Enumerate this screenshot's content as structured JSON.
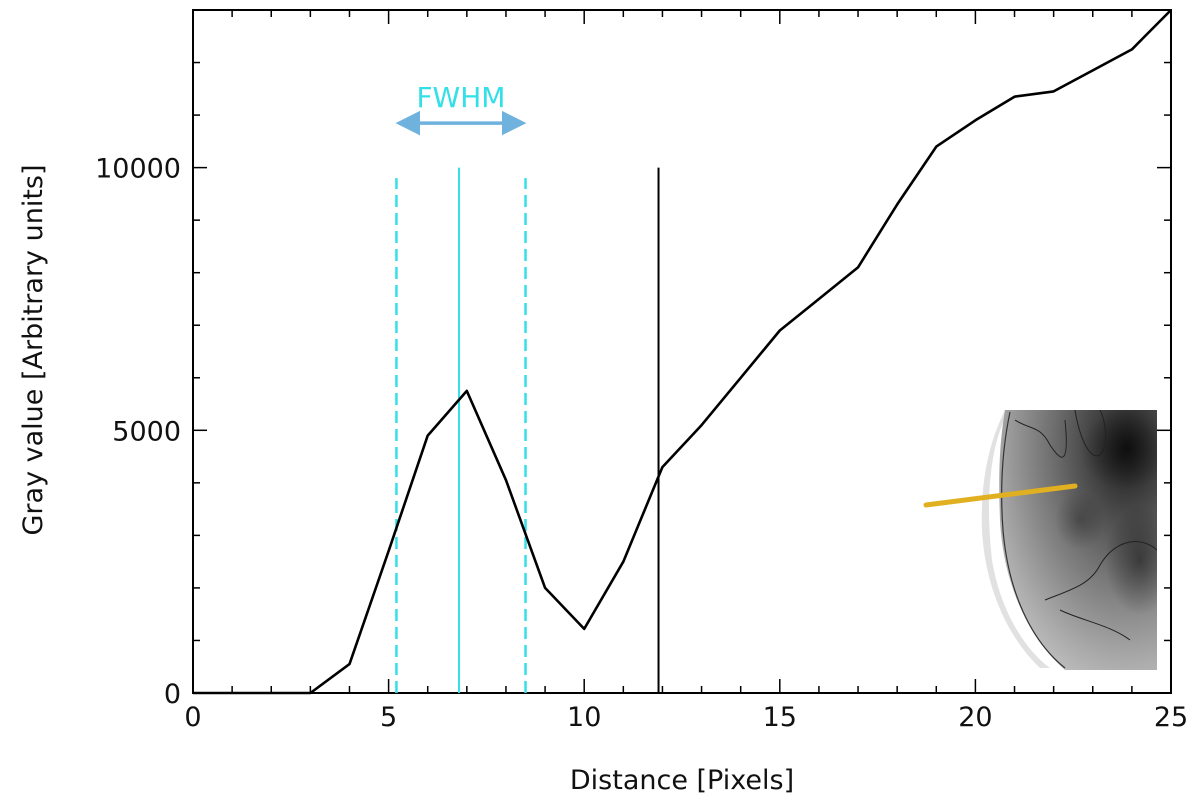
{
  "chart_data": {
    "type": "line",
    "xlabel": "Distance [Pixels]",
    "ylabel": "Gray value [Arbitrary units]",
    "xlim": [
      0,
      25
    ],
    "ylim": [
      0,
      13000
    ],
    "x_ticks": [
      0,
      5,
      10,
      15,
      20,
      25
    ],
    "y_ticks": [
      0,
      5000,
      10000
    ],
    "x_minor_step": 1,
    "y_minor_step": 1000,
    "grid": false,
    "series": [
      {
        "name": "gray value profile",
        "color": "#000000",
        "x": [
          0,
          1,
          2,
          3,
          4,
          5,
          6,
          7,
          8,
          9,
          10,
          11,
          12,
          13,
          14,
          15,
          16,
          17,
          18,
          19,
          20,
          21,
          22,
          23,
          24,
          25
        ],
        "y": [
          0,
          0,
          0,
          0,
          550,
          2700,
          4900,
          5750,
          4050,
          2000,
          1220,
          2500,
          4300,
          5100,
          6000,
          6900,
          7500,
          8100,
          9300,
          10400,
          10900,
          11350,
          11450,
          11850,
          12250,
          13000
        ]
      }
    ],
    "reference_lines": [
      {
        "name": "peak-center",
        "x": 6.8,
        "y_top": 10000,
        "style": "solid",
        "color": "#33e0e8"
      },
      {
        "name": "fwhm-left",
        "x": 5.2,
        "y_top": 9800,
        "style": "dashed",
        "color": "#33e0e8"
      },
      {
        "name": "fwhm-right",
        "x": 8.5,
        "y_top": 9800,
        "style": "dashed",
        "color": "#33e0e8"
      },
      {
        "name": "marker",
        "x": 11.9,
        "y_top": 10000,
        "style": "solid",
        "color": "#000000"
      }
    ],
    "annotation": {
      "text": "FWHM",
      "x_from": 5.2,
      "x_to": 8.5,
      "y": 11000,
      "text_color": "#33e0e8",
      "arrow_color": "#6fb2de"
    },
    "inset": {
      "description": "grayscale image with contour lines and yellow profile cut",
      "line_color": "#e0b020"
    }
  }
}
